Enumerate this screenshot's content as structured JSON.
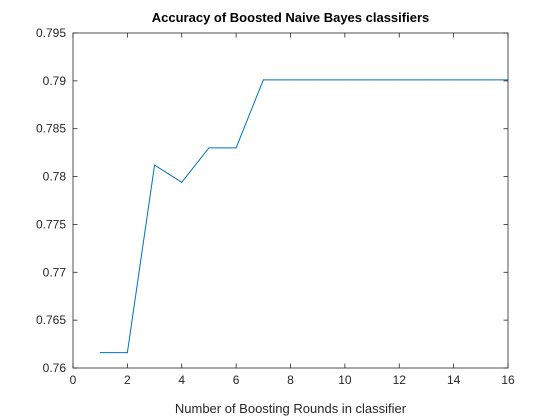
{
  "chart_data": {
    "type": "line",
    "title": "Accuracy of Boosted Naive Bayes classifiers",
    "xlabel": "Number of Boosting Rounds in classifier",
    "ylabel": "",
    "xlim": [
      0,
      16
    ],
    "ylim": [
      0.76,
      0.795
    ],
    "xticks": [
      0,
      2,
      4,
      6,
      8,
      10,
      12,
      14,
      16
    ],
    "xtick_labels": [
      "0",
      "2",
      "4",
      "6",
      "8",
      "10",
      "12",
      "14",
      "16"
    ],
    "yticks": [
      0.76,
      0.765,
      0.77,
      0.775,
      0.78,
      0.785,
      0.79,
      0.795
    ],
    "ytick_labels": [
      "0.76",
      "0.765",
      "0.77",
      "0.775",
      "0.78",
      "0.785",
      "0.79",
      "0.795"
    ],
    "grid": false,
    "series": [
      {
        "x": [
          1,
          2,
          3,
          4,
          5,
          6,
          7,
          8,
          9,
          10,
          11,
          12,
          13,
          14,
          15,
          16
        ],
        "values": [
          0.7616,
          0.7616,
          0.7812,
          0.7794,
          0.783,
          0.783,
          0.7901,
          0.7901,
          0.7901,
          0.7901,
          0.7901,
          0.7901,
          0.7901,
          0.7901,
          0.7901,
          0.7901
        ],
        "color": "#0072BD"
      }
    ]
  }
}
